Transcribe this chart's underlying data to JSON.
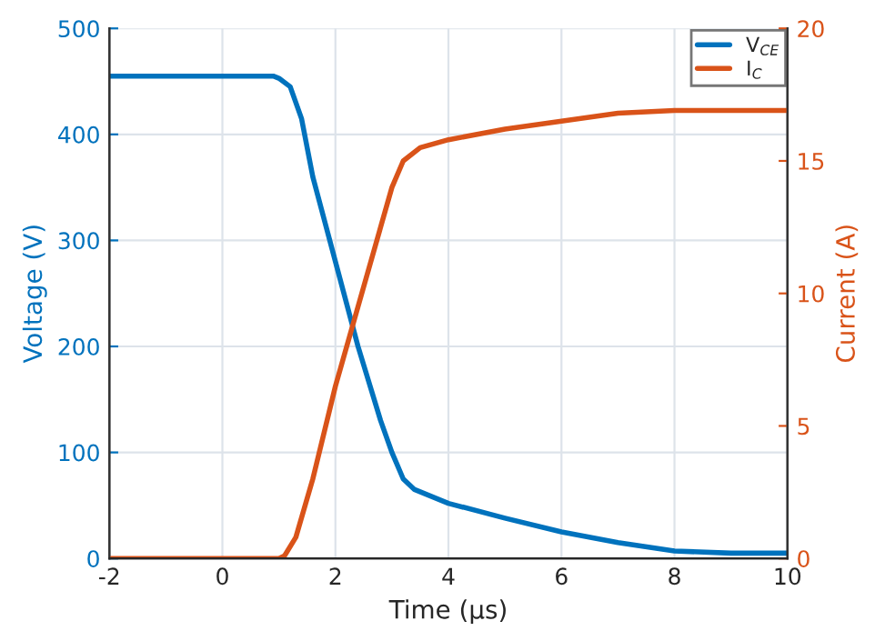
{
  "chart_data": {
    "type": "line",
    "xlabel": "Time (µs)",
    "ylabel": "Voltage (V)",
    "y2label": "Current (A)",
    "xlim": [
      -2,
      10
    ],
    "xticks": [
      -2,
      0,
      2,
      4,
      6,
      8,
      10
    ],
    "ylim": [
      0,
      500
    ],
    "yticks": [
      0,
      100,
      200,
      300,
      400,
      500
    ],
    "y2lim": [
      0,
      20
    ],
    "y2ticks": [
      0,
      5,
      10,
      15,
      20
    ],
    "grid": true,
    "legend": "top right",
    "line_style": "solid",
    "marker": "none",
    "series": [
      {
        "name": "V$_{CE}$",
        "color": "#0072bd",
        "x": [
          -2,
          0,
          0.9,
          1.0,
          1.2,
          1.4,
          1.6,
          2.0,
          2.4,
          2.8,
          3.0,
          3.2,
          3.4,
          4,
          5,
          6,
          7,
          8,
          9,
          10
        ],
        "values": [
          455,
          455,
          455,
          453,
          445,
          415,
          360,
          280,
          200,
          130,
          100,
          75,
          65,
          52,
          38,
          25,
          15,
          7,
          5,
          5
        ]
      },
      {
        "name": "I$_{C}$",
        "color": "#d95319",
        "axis": "y2",
        "x": [
          -2,
          0,
          1.0,
          1.1,
          1.3,
          1.6,
          2.0,
          2.4,
          2.8,
          3.0,
          3.2,
          3.5,
          4,
          5,
          6,
          7,
          8,
          9,
          10
        ],
        "values": [
          0,
          0,
          0,
          0.1,
          0.8,
          3,
          6.5,
          9.5,
          12.5,
          14,
          15,
          15.5,
          15.8,
          16.2,
          16.5,
          16.8,
          16.9,
          16.9,
          16.9
        ]
      }
    ]
  }
}
